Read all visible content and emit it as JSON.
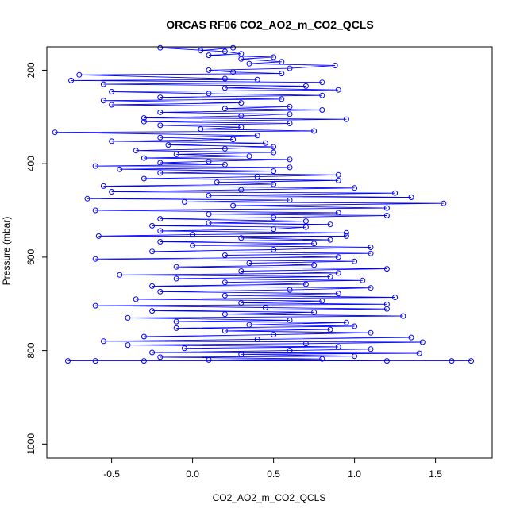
{
  "chart_data": {
    "type": "line",
    "title": "ORCAS RF06 CO2_AO2_m_CO2_QCLS",
    "xlabel": "CO2_AO2_m_CO2_QCLS",
    "ylabel": "Pressure (mbar)",
    "xlim": [
      -0.9,
      1.85
    ],
    "ylim": [
      1030,
      150
    ],
    "y_reversed": true,
    "grid": false,
    "legend": "none",
    "x_ticks": [
      -0.5,
      0.0,
      0.5,
      1.0,
      1.5
    ],
    "x_tick_labels": [
      "-0.5",
      "0.0",
      "0.5",
      "1.0",
      "1.5"
    ],
    "y_ticks": [
      200,
      400,
      600,
      800,
      1000
    ],
    "y_tick_labels": [
      "200",
      "400",
      "600",
      "800",
      "1000"
    ],
    "series": [
      {
        "color": "#0000ff",
        "marker": "open-circle",
        "points": [
          [
            -0.77,
            822
          ],
          [
            1.72,
            822
          ],
          [
            -0.6,
            822
          ],
          [
            1.6,
            822
          ],
          [
            -0.3,
            822
          ],
          [
            1.2,
            822
          ],
          [
            0.1,
            820
          ],
          [
            0.8,
            818
          ],
          [
            -0.2,
            814
          ],
          [
            1.0,
            812
          ],
          [
            0.3,
            808
          ],
          [
            1.4,
            806
          ],
          [
            -0.25,
            804
          ],
          [
            0.6,
            800
          ],
          [
            1.1,
            797
          ],
          [
            -0.05,
            795
          ],
          [
            0.9,
            792
          ],
          [
            -0.4,
            788
          ],
          [
            0.7,
            785
          ],
          [
            1.42,
            782
          ],
          [
            -0.55,
            780
          ],
          [
            0.4,
            776
          ],
          [
            1.35,
            772
          ],
          [
            -0.3,
            770
          ],
          [
            0.5,
            766
          ],
          [
            1.1,
            762
          ],
          [
            0.2,
            758
          ],
          [
            0.85,
            755
          ],
          [
            -0.1,
            752
          ],
          [
            1.0,
            748
          ],
          [
            0.35,
            745
          ],
          [
            0.95,
            740
          ],
          [
            -0.1,
            738
          ],
          [
            0.6,
            735
          ],
          [
            -0.4,
            730
          ],
          [
            1.3,
            726
          ],
          [
            0.2,
            722
          ],
          [
            0.75,
            718
          ],
          [
            -0.25,
            715
          ],
          [
            1.2,
            711
          ],
          [
            0.45,
            708
          ],
          [
            -0.6,
            704
          ],
          [
            1.2,
            701
          ],
          [
            0.3,
            698
          ],
          [
            0.8,
            694
          ],
          [
            -0.35,
            690
          ],
          [
            1.25,
            686
          ],
          [
            0.2,
            682
          ],
          [
            0.9,
            678
          ],
          [
            -0.2,
            674
          ],
          [
            0.6,
            670
          ],
          [
            1.1,
            666
          ],
          [
            -0.25,
            662
          ],
          [
            0.7,
            658
          ],
          [
            0.2,
            654
          ],
          [
            1.05,
            650
          ],
          [
            -0.1,
            646
          ],
          [
            0.85,
            642
          ],
          [
            -0.45,
            638
          ],
          [
            0.9,
            634
          ],
          [
            0.3,
            630
          ],
          [
            1.2,
            625
          ],
          [
            -0.1,
            621
          ],
          [
            0.75,
            617
          ],
          [
            0.35,
            613
          ],
          [
            1.0,
            609
          ],
          [
            -0.6,
            604
          ],
          [
            0.9,
            600
          ],
          [
            0.2,
            596
          ],
          [
            1.1,
            592
          ],
          [
            -0.25,
            588
          ],
          [
            0.5,
            584
          ],
          [
            1.1,
            579
          ],
          [
            0.0,
            575
          ],
          [
            0.75,
            571
          ],
          [
            -0.2,
            567
          ],
          [
            0.85,
            563
          ],
          [
            0.3,
            559
          ],
          [
            0.95,
            555
          ],
          [
            -0.58,
            555
          ],
          [
            0.0,
            552
          ],
          [
            0.95,
            548
          ],
          [
            -0.2,
            544
          ],
          [
            0.5,
            540
          ],
          [
            0.7,
            536
          ],
          [
            -0.25,
            533
          ],
          [
            0.85,
            530
          ],
          [
            0.1,
            527
          ],
          [
            0.7,
            523
          ],
          [
            -0.2,
            518
          ],
          [
            0.5,
            515
          ],
          [
            1.2,
            511
          ],
          [
            0.1,
            508
          ],
          [
            0.9,
            505
          ],
          [
            -0.6,
            500
          ],
          [
            1.2,
            495
          ],
          [
            0.25,
            490
          ],
          [
            1.55,
            485
          ],
          [
            -0.05,
            482
          ],
          [
            0.6,
            478
          ],
          [
            -0.65,
            475
          ],
          [
            1.35,
            472
          ],
          [
            0.1,
            468
          ],
          [
            1.25,
            463
          ],
          [
            -0.5,
            460
          ],
          [
            0.3,
            456
          ],
          [
            1.0,
            452
          ],
          [
            -0.55,
            448
          ],
          [
            0.5,
            444
          ],
          [
            0.15,
            440
          ],
          [
            0.9,
            436
          ],
          [
            -0.3,
            432
          ],
          [
            0.4,
            428
          ],
          [
            0.9,
            424
          ],
          [
            -0.2,
            420
          ],
          [
            0.5,
            416
          ],
          [
            -0.45,
            412
          ],
          [
            0.6,
            408
          ],
          [
            -0.6,
            405
          ],
          [
            0.2,
            402
          ],
          [
            -0.2,
            398
          ],
          [
            0.1,
            395
          ],
          [
            0.6,
            391
          ],
          [
            -0.3,
            388
          ],
          [
            0.35,
            384
          ],
          [
            -0.1,
            380
          ],
          [
            0.5,
            376
          ],
          [
            -0.35,
            372
          ],
          [
            0.2,
            368
          ],
          [
            0.5,
            364
          ],
          [
            -0.15,
            360
          ],
          [
            0.45,
            356
          ],
          [
            -0.5,
            352
          ],
          [
            0.25,
            348
          ],
          [
            -0.2,
            344
          ],
          [
            0.4,
            340
          ],
          [
            -0.85,
            333
          ],
          [
            0.75,
            330
          ],
          [
            0.05,
            326
          ],
          [
            0.3,
            322
          ],
          [
            -0.2,
            318
          ],
          [
            0.6,
            314
          ],
          [
            -0.3,
            310
          ],
          [
            0.95,
            305
          ],
          [
            -0.3,
            302
          ],
          [
            0.3,
            298
          ],
          [
            0.6,
            294
          ],
          [
            -0.2,
            290
          ],
          [
            0.8,
            285
          ],
          [
            0.2,
            282
          ],
          [
            0.6,
            278
          ],
          [
            -0.5,
            274
          ],
          [
            0.3,
            270
          ],
          [
            -0.55,
            265
          ],
          [
            0.55,
            262
          ],
          [
            -0.2,
            258
          ],
          [
            0.8,
            254
          ],
          [
            0.1,
            250
          ],
          [
            -0.5,
            246
          ],
          [
            0.9,
            242
          ],
          [
            0.2,
            238
          ],
          [
            0.7,
            234
          ],
          [
            -0.55,
            230
          ],
          [
            0.8,
            226
          ],
          [
            -0.75,
            222
          ],
          [
            0.4,
            220
          ],
          [
            0.2,
            218
          ],
          [
            -0.7,
            210
          ],
          [
            0.55,
            207
          ],
          [
            0.25,
            204
          ],
          [
            0.1,
            200
          ],
          [
            0.6,
            196
          ],
          [
            0.88,
            190
          ],
          [
            0.35,
            186
          ],
          [
            0.55,
            182
          ],
          [
            0.3,
            176
          ],
          [
            0.5,
            172
          ],
          [
            0.1,
            168
          ],
          [
            0.3,
            165
          ],
          [
            0.2,
            160
          ],
          [
            -0.2,
            152
          ],
          [
            0.25,
            152
          ],
          [
            0.05,
            158
          ]
        ]
      }
    ]
  }
}
